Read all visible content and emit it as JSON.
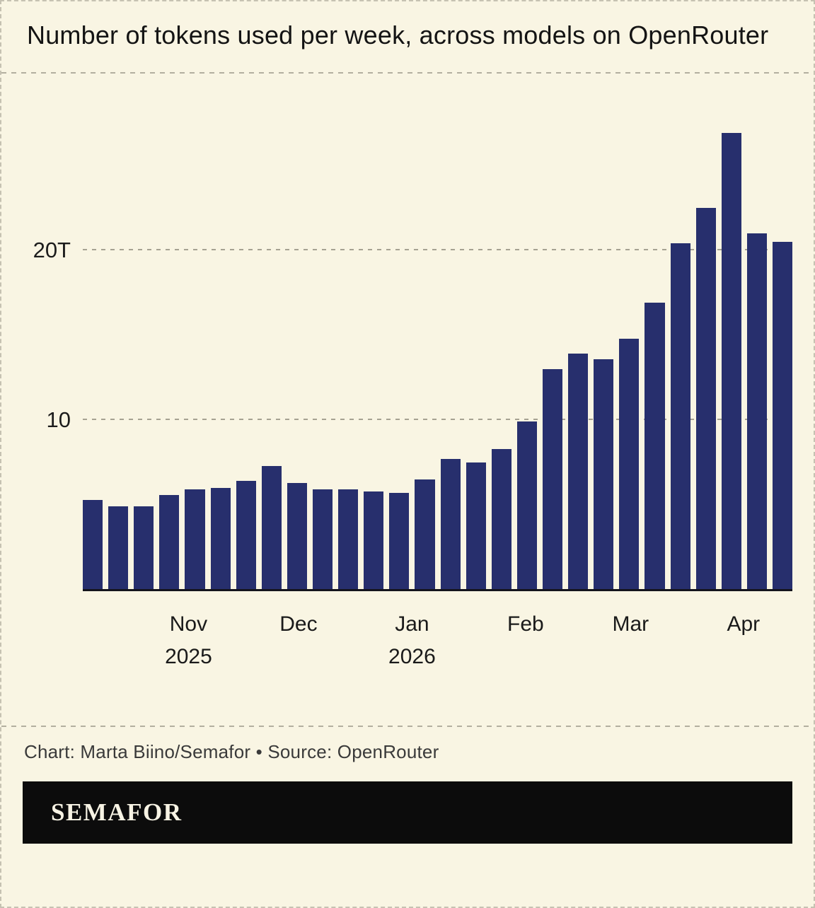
{
  "chart": {
    "title": "Number of tokens used per week, across models on OpenRouter"
  },
  "chart_data": {
    "type": "bar",
    "title": "Number of tokens used per week, across models on OpenRouter",
    "values": [
      5.3,
      4.9,
      4.9,
      5.6,
      5.9,
      6.0,
      6.4,
      7.3,
      6.3,
      5.9,
      5.9,
      5.8,
      5.7,
      6.5,
      7.7,
      7.5,
      8.3,
      9.9,
      13.0,
      13.9,
      13.6,
      14.8,
      16.9,
      20.4,
      22.5,
      26.9,
      21.0,
      20.5
    ],
    "ylim": [
      0,
      30
    ],
    "gridlines": [
      {
        "value": 10,
        "label": "10"
      },
      {
        "value": 20,
        "label": "20T"
      }
    ],
    "x_ticks": [
      {
        "label": "Nov",
        "sublabel": "2025",
        "pos": 0.149
      },
      {
        "label": "Dec",
        "sublabel": "",
        "pos": 0.304
      },
      {
        "label": "Jan",
        "sublabel": "2026",
        "pos": 0.464
      },
      {
        "label": "Feb",
        "sublabel": "",
        "pos": 0.624
      },
      {
        "label": "Mar",
        "sublabel": "",
        "pos": 0.772
      },
      {
        "label": "Apr",
        "sublabel": "",
        "pos": 0.931
      }
    ],
    "bar_color": "#272f6d",
    "background_color": "#f9f5e3",
    "grid": true,
    "legend": false
  },
  "footer": {
    "credit": "Chart: Marta Biino/Semafor • Source: OpenRouter",
    "logo": "SEMAFOR"
  }
}
